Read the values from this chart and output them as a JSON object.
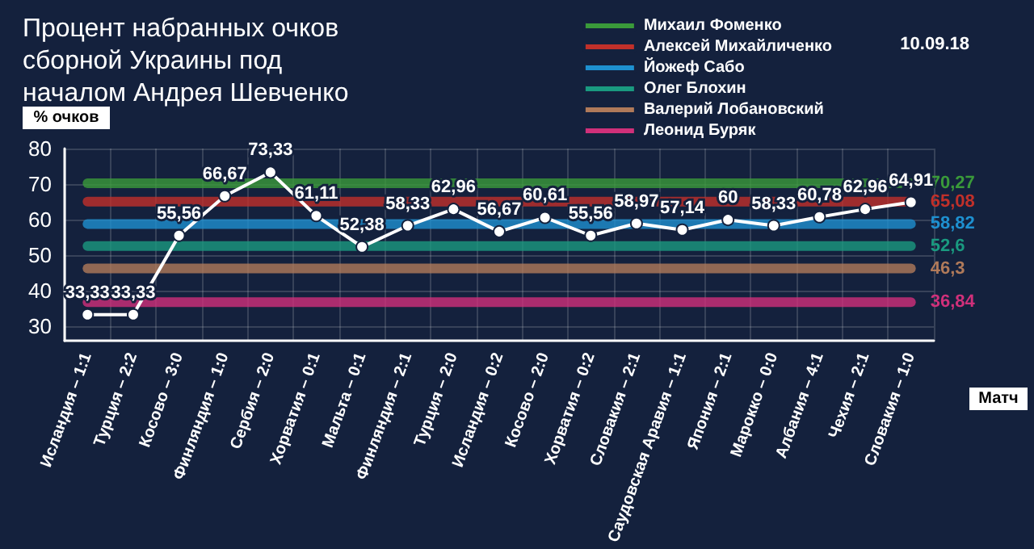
{
  "chart_data": {
    "type": "line",
    "title": "Процент набранных очков сборной Украины под началом Андрея Шевченко",
    "annotations": [
      "10.09.18"
    ],
    "xlabel": "Матч",
    "ylabel": "% очков",
    "categories": [
      "Исландия – 1:1",
      "Турция – 2:2",
      "Косово – 3:0",
      "Финляндия – 1:0",
      "Сербия – 2:0",
      "Хорватия – 0:1",
      "Мальта – 0:1",
      "Финляндия – 2:1",
      "Турция – 2:0",
      "Исландия – 0:2",
      "Косово – 2:0",
      "Хорватия – 0:2",
      "Словакия – 2:1",
      "Саудовская Аравия – 1:1",
      "Япония – 2:1",
      "Марокко – 0:0",
      "Албания – 4:1",
      "Чехия – 2:1",
      "Словакия – 1:0"
    ],
    "series": [
      {
        "name": "Михаил Фоменко",
        "color": "#3a9a3a",
        "values": [
          70.27,
          70.27,
          70.27,
          70.27,
          70.27,
          70.27,
          70.27,
          70.27,
          70.27,
          70.27,
          70.27,
          70.27,
          70.27,
          70.27,
          70.27,
          70.27,
          70.27,
          70.27,
          70.27
        ],
        "value_labels": [
          null,
          null,
          null,
          null,
          null,
          null,
          null,
          null,
          null,
          null,
          null,
          null,
          null,
          null,
          null,
          null,
          null,
          null,
          "70,27"
        ]
      },
      {
        "name": "Алексей Михайличенко",
        "color": "#c0302a",
        "values": [
          65.08,
          65.08,
          65.08,
          65.08,
          65.08,
          65.08,
          65.08,
          65.08,
          65.08,
          65.08,
          65.08,
          65.08,
          65.08,
          65.08,
          65.08,
          65.08,
          65.08,
          65.08,
          65.08
        ],
        "value_labels": [
          null,
          null,
          null,
          null,
          null,
          null,
          null,
          null,
          null,
          null,
          null,
          null,
          null,
          null,
          null,
          null,
          null,
          null,
          "65,08"
        ]
      },
      {
        "name": "Йожеф Сабо",
        "color": "#1e90d0",
        "values": [
          58.82,
          58.82,
          58.82,
          58.82,
          58.82,
          58.82,
          58.82,
          58.82,
          58.82,
          58.82,
          58.82,
          58.82,
          58.82,
          58.82,
          58.82,
          58.82,
          58.82,
          58.82,
          58.82
        ],
        "value_labels": [
          null,
          null,
          null,
          null,
          null,
          null,
          null,
          null,
          null,
          null,
          null,
          null,
          null,
          null,
          null,
          null,
          null,
          null,
          "58,82"
        ]
      },
      {
        "name": "Олег Блохин",
        "color": "#1a9a80",
        "values": [
          52.6,
          52.6,
          52.6,
          52.6,
          52.6,
          52.6,
          52.6,
          52.6,
          52.6,
          52.6,
          52.6,
          52.6,
          52.6,
          52.6,
          52.6,
          52.6,
          52.6,
          52.6,
          52.6
        ],
        "value_labels": [
          null,
          null,
          null,
          null,
          null,
          null,
          null,
          null,
          null,
          null,
          null,
          null,
          null,
          null,
          null,
          null,
          null,
          null,
          "52,6"
        ]
      },
      {
        "name": "Валерий Лобановский",
        "color": "#b07a5a",
        "values": [
          46.3,
          46.3,
          46.3,
          46.3,
          46.3,
          46.3,
          46.3,
          46.3,
          46.3,
          46.3,
          46.3,
          46.3,
          46.3,
          46.3,
          46.3,
          46.3,
          46.3,
          46.3,
          46.3
        ],
        "value_labels": [
          null,
          null,
          null,
          null,
          null,
          null,
          null,
          null,
          null,
          null,
          null,
          null,
          null,
          null,
          null,
          null,
          null,
          null,
          "46,3"
        ]
      },
      {
        "name": "Леонид Буряк",
        "color": "#d0307a",
        "values": [
          36.84,
          36.84,
          36.84,
          36.84,
          36.84,
          36.84,
          36.84,
          36.84,
          36.84,
          36.84,
          36.84,
          36.84,
          36.84,
          36.84,
          36.84,
          36.84,
          36.84,
          36.84,
          36.84
        ],
        "value_labels": [
          null,
          null,
          null,
          null,
          null,
          null,
          null,
          null,
          null,
          null,
          null,
          null,
          null,
          null,
          null,
          null,
          null,
          null,
          "36,84"
        ]
      },
      {
        "color": "#ffffff",
        "values": [
          33.33,
          33.33,
          55.56,
          66.67,
          73.33,
          61.11,
          52.38,
          58.33,
          62.96,
          56.67,
          60.61,
          55.56,
          58.97,
          57.14,
          60,
          58.33,
          60.78,
          62.96,
          64.91
        ],
        "value_labels": [
          "33,33",
          "33,33",
          "55,56",
          "66,67",
          "73,33",
          "61,11",
          "52,38",
          "58,33",
          "62,96",
          "56,67",
          "60,61",
          "55,56",
          "58,97",
          "57,14",
          "60",
          "58,33",
          "60,78",
          "62,96",
          "64,91"
        ],
        "marker": "circle"
      }
    ],
    "ylim": [
      26,
      80
    ],
    "yticks": [
      30,
      40,
      50,
      60,
      70,
      80
    ],
    "grid": true,
    "legend": "top right"
  }
}
